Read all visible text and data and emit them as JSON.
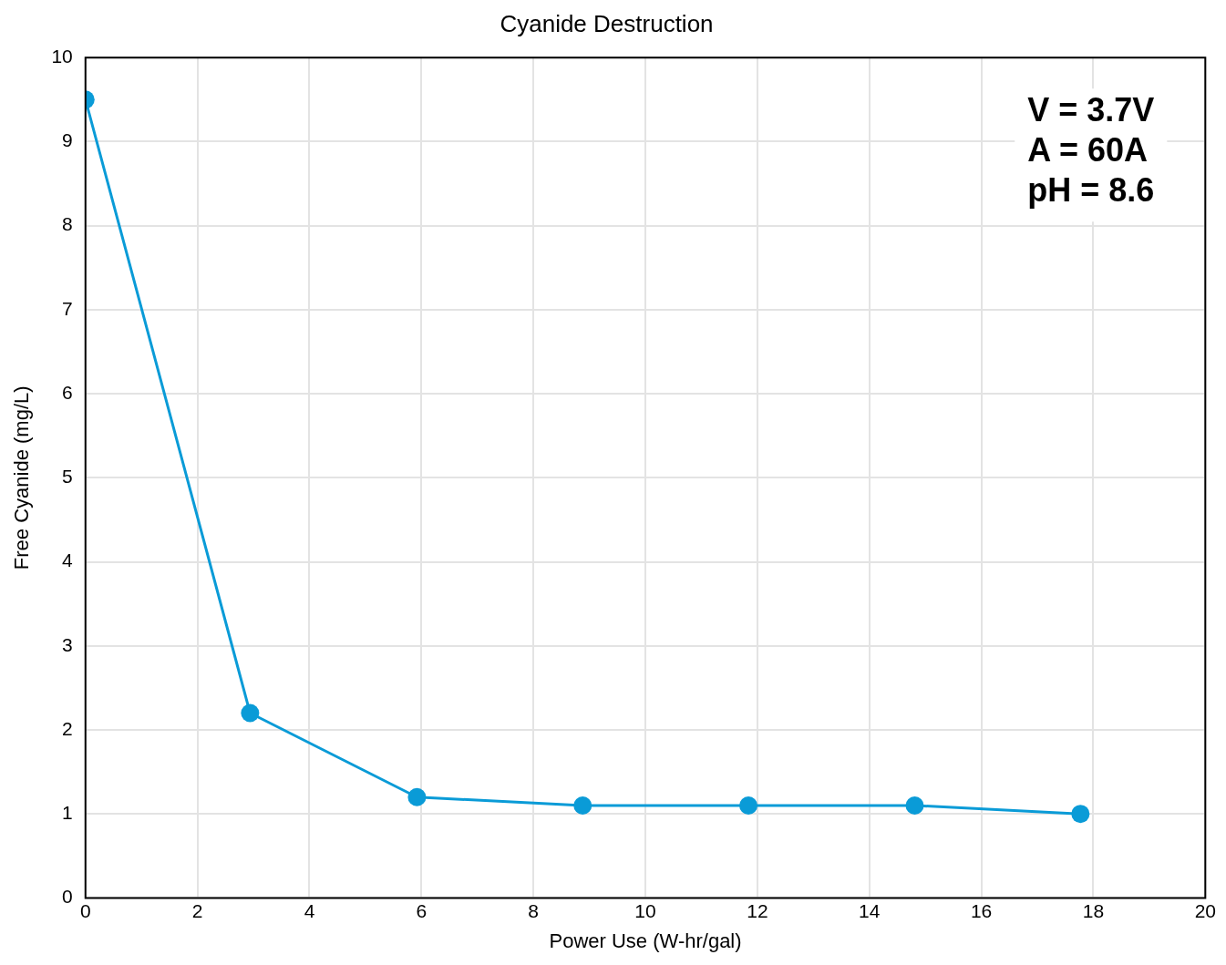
{
  "chart_data": {
    "type": "line",
    "title": "Cyanide Destruction",
    "xlabel": "Power Use (W-hr/gal)",
    "ylabel": "Free Cyanide (mg/L)",
    "x": [
      0,
      2.94,
      5.92,
      8.88,
      11.84,
      14.81,
      17.77
    ],
    "series": [
      {
        "color": "#0a9bd7",
        "values": [
          9.5,
          2.2,
          1.2,
          1.1,
          1.1,
          1.1,
          1.0
        ]
      }
    ],
    "xlim": [
      0,
      20
    ],
    "xticks": [
      0,
      2,
      4,
      6,
      8,
      10,
      12,
      14,
      16,
      18,
      20
    ],
    "ylim": [
      0,
      10
    ],
    "yticks": [
      0,
      1,
      2,
      3,
      4,
      5,
      6,
      7,
      8,
      9,
      10
    ],
    "grid": true,
    "legend": false,
    "marker": "circle",
    "line_style": "solid",
    "annotations": [
      "V = 3.7V",
      "A = 60A",
      "pH = 8.6"
    ]
  }
}
